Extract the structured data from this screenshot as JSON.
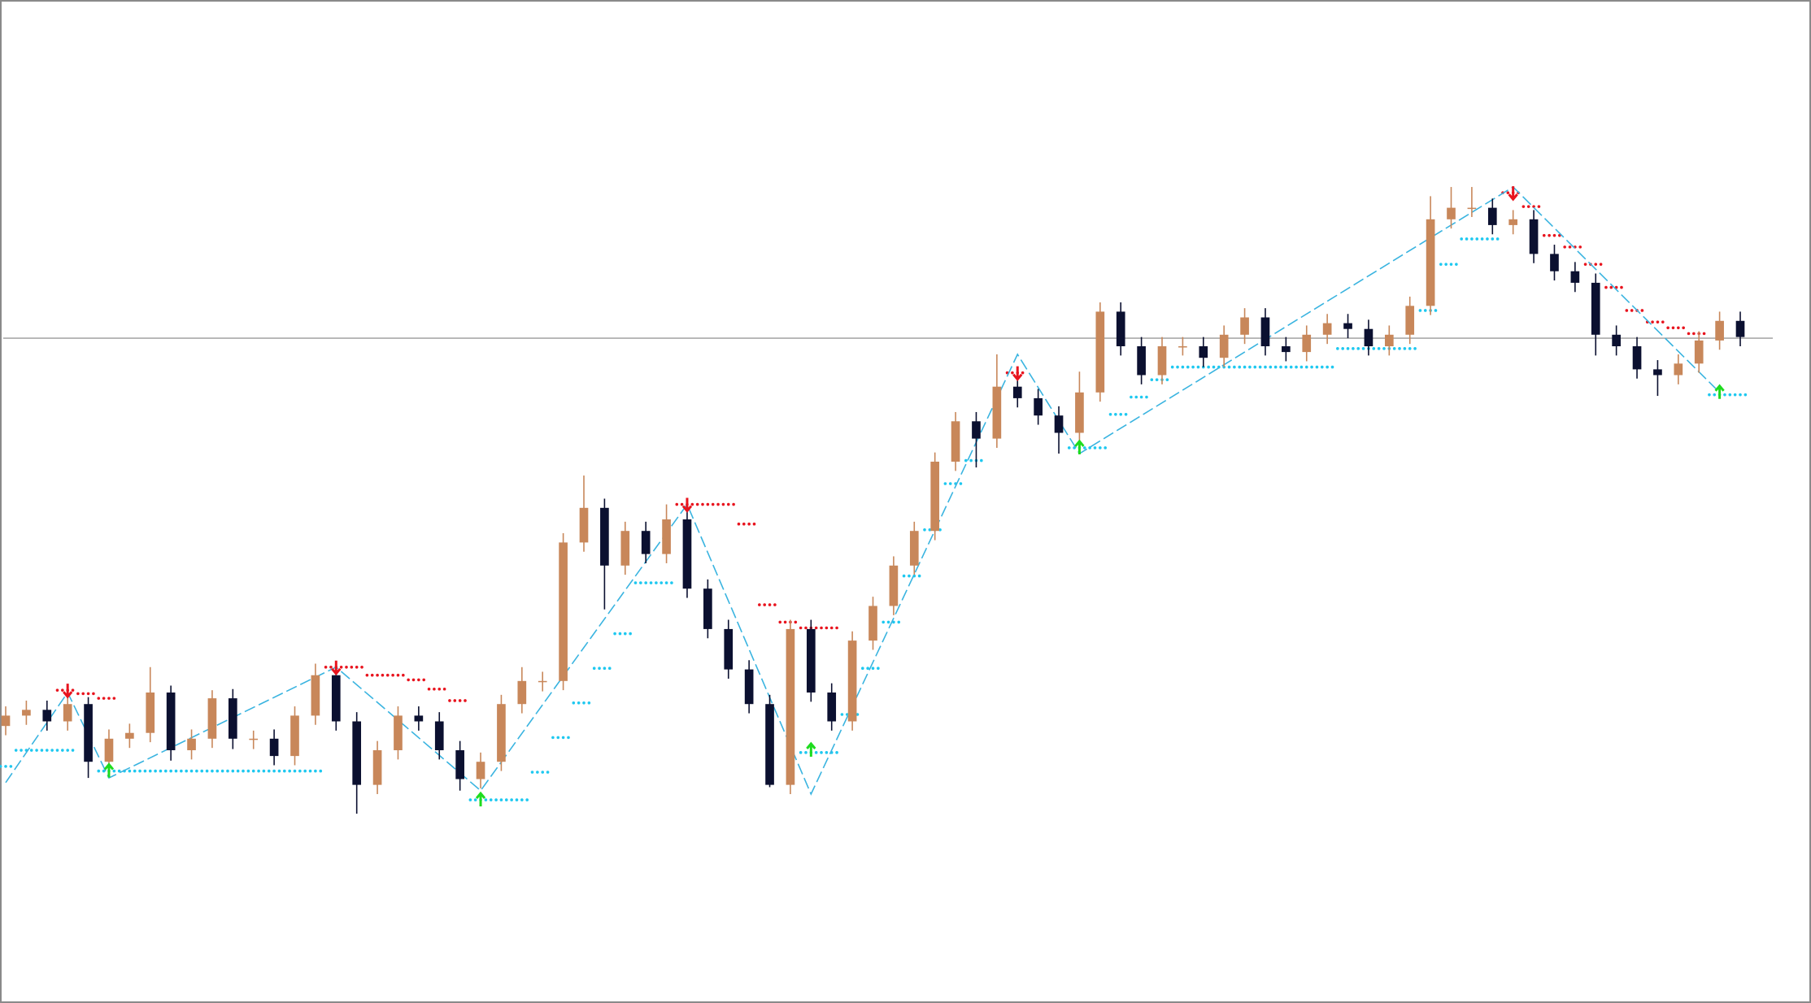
{
  "chart_data": {
    "type": "candlestick",
    "ylim": [
      0,
      869
    ],
    "colors": {
      "up": "#c8875a",
      "down": "#0b1030",
      "zigzag": "#3ab4e0",
      "support": "#1ec8f0",
      "resistance": "#e8141e",
      "up_arrow": "#1edc1e",
      "down_arrow": "#e8141e",
      "price_line": "#9a9a9a"
    },
    "open": [
      240,
      249,
      254,
      244,
      259,
      209,
      229,
      234,
      269,
      219,
      229,
      264,
      229,
      229,
      214,
      249,
      284,
      244,
      189,
      219,
      249,
      244,
      219,
      194,
      209,
      259,
      279,
      279,
      399,
      429,
      379,
      409,
      389,
      419,
      359,
      324,
      289,
      259,
      189,
      324,
      269,
      244,
      314,
      344,
      379,
      409,
      469,
      504,
      489,
      534,
      524,
      509,
      494,
      529,
      599,
      569,
      544,
      569,
      569,
      559,
      579,
      594,
      569,
      564,
      579,
      589,
      584,
      569,
      579,
      604,
      679,
      689,
      689,
      674,
      679,
      649,
      634,
      624,
      579,
      569,
      549,
      544,
      554,
      574,
      591
    ],
    "high": [
      257,
      262,
      262,
      270,
      265,
      237,
      242,
      291,
      275,
      237,
      271,
      272,
      236,
      237,
      257,
      294,
      290,
      252,
      227,
      257,
      257,
      252,
      227,
      217,
      267,
      291,
      287,
      407,
      457,
      437,
      417,
      417,
      432,
      427,
      367,
      332,
      297,
      267,
      332,
      332,
      277,
      322,
      352,
      387,
      417,
      477,
      512,
      512,
      562,
      542,
      532,
      517,
      547,
      607,
      607,
      577,
      577,
      577,
      577,
      587,
      602,
      602,
      577,
      587,
      597,
      597,
      592,
      587,
      612,
      699,
      707,
      707,
      697,
      687,
      687,
      657,
      642,
      632,
      587,
      577,
      557,
      562,
      582,
      599,
      599
    ],
    "low": [
      232,
      241,
      236,
      236,
      195,
      200,
      221,
      226,
      210,
      211,
      221,
      220,
      220,
      206,
      206,
      241,
      236,
      164,
      181,
      211,
      236,
      211,
      184,
      186,
      201,
      251,
      270,
      271,
      391,
      341,
      371,
      381,
      381,
      351,
      316,
      281,
      251,
      187,
      181,
      261,
      236,
      236,
      306,
      336,
      371,
      401,
      461,
      464,
      481,
      516,
      501,
      476,
      486,
      521,
      561,
      536,
      536,
      561,
      551,
      551,
      571,
      561,
      556,
      556,
      571,
      576,
      561,
      561,
      571,
      596,
      671,
      681,
      666,
      666,
      641,
      626,
      616,
      561,
      561,
      541,
      526,
      536,
      546,
      566,
      569
    ],
    "close": [
      249,
      254,
      244,
      259,
      209,
      229,
      234,
      269,
      219,
      229,
      264,
      229,
      229,
      214,
      249,
      284,
      244,
      189,
      219,
      249,
      244,
      219,
      194,
      209,
      259,
      279,
      279,
      399,
      429,
      379,
      409,
      389,
      419,
      359,
      324,
      289,
      259,
      189,
      324,
      269,
      244,
      314,
      344,
      379,
      409,
      469,
      504,
      489,
      534,
      524,
      509,
      494,
      529,
      599,
      569,
      544,
      569,
      569,
      559,
      579,
      594,
      569,
      564,
      579,
      589,
      584,
      569,
      579,
      604,
      679,
      689,
      689,
      674,
      679,
      649,
      634,
      624,
      579,
      569,
      549,
      544,
      554,
      574,
      591,
      577
    ],
    "zigzag": {
      "x": [
        0,
        3,
        5,
        16,
        23,
        33,
        39,
        49,
        52,
        73,
        83
      ],
      "values": [
        191,
        269,
        195,
        291,
        184,
        432,
        181,
        562,
        476,
        707,
        529
      ]
    },
    "resistance": [
      null,
      null,
      null,
      271,
      268,
      264,
      null,
      null,
      null,
      null,
      null,
      null,
      null,
      null,
      null,
      null,
      291,
      291,
      284,
      284,
      280,
      272,
      262,
      null,
      null,
      null,
      null,
      null,
      null,
      null,
      null,
      null,
      null,
      432,
      432,
      432,
      415,
      345,
      330,
      325,
      325,
      null,
      null,
      null,
      null,
      null,
      null,
      null,
      null,
      546,
      null,
      null,
      null,
      null,
      null,
      null,
      null,
      null,
      null,
      null,
      null,
      null,
      null,
      null,
      null,
      null,
      null,
      null,
      null,
      null,
      null,
      null,
      null,
      702,
      690,
      665,
      655,
      640,
      620,
      600,
      590,
      585,
      580,
      null,
      null
    ],
    "support": [
      205,
      219,
      219,
      219,
      null,
      201,
      201,
      201,
      201,
      201,
      201,
      201,
      201,
      201,
      201,
      201,
      null,
      null,
      null,
      null,
      null,
      null,
      null,
      176,
      176,
      176,
      200,
      230,
      260,
      290,
      320,
      364,
      364,
      null,
      null,
      null,
      null,
      null,
      null,
      217,
      217,
      250,
      290,
      330,
      370,
      410,
      450,
      470,
      null,
      null,
      null,
      null,
      481,
      481,
      510,
      525,
      540,
      551,
      551,
      551,
      551,
      551,
      551,
      551,
      551,
      567,
      567,
      567,
      567,
      600,
      640,
      662,
      662,
      null,
      null,
      null,
      null,
      null,
      null,
      null,
      null,
      null,
      null,
      527,
      527
    ],
    "down_arrows": {
      "x": [
        3,
        16,
        33,
        49,
        73
      ],
      "values": [
        271,
        291,
        432,
        546,
        702
      ]
    },
    "up_arrows": {
      "x": [
        5,
        23,
        39,
        52,
        83
      ],
      "values": [
        201,
        176,
        219,
        481,
        529
      ]
    },
    "price_line": 576
  }
}
